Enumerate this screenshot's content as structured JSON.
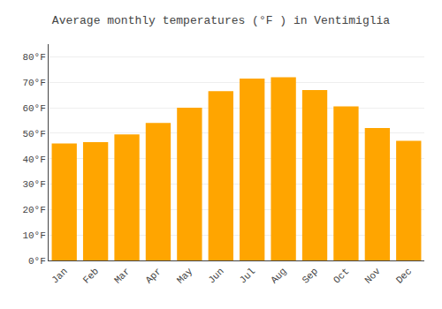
{
  "chart_data": {
    "type": "bar",
    "title": "Average monthly temperatures (°F ) in Ventimiglia",
    "categories": [
      "Jan",
      "Feb",
      "Mar",
      "Apr",
      "May",
      "Jun",
      "Jul",
      "Aug",
      "Sep",
      "Oct",
      "Nov",
      "Dec"
    ],
    "values": [
      46,
      46.5,
      49.5,
      54,
      60,
      66.5,
      71.5,
      72,
      67,
      60.5,
      52,
      47
    ],
    "color": "#FFA500",
    "ylim": [
      0,
      85
    ],
    "yticks": [
      {
        "value": 0,
        "label": "0°F"
      },
      {
        "value": 10,
        "label": "10°F"
      },
      {
        "value": 20,
        "label": "20°F"
      },
      {
        "value": 30,
        "label": "30°F"
      },
      {
        "value": 40,
        "label": "40°F"
      },
      {
        "value": 50,
        "label": "50°F"
      },
      {
        "value": 60,
        "label": "60°F"
      },
      {
        "value": 70,
        "label": "70°F"
      },
      {
        "value": 80,
        "label": "80°F"
      }
    ],
    "grid": true
  }
}
